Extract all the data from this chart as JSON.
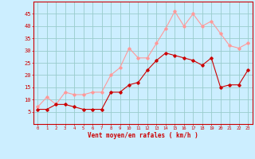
{
  "x": [
    0,
    1,
    2,
    3,
    4,
    5,
    6,
    7,
    8,
    9,
    10,
    11,
    12,
    13,
    14,
    15,
    16,
    17,
    18,
    19,
    20,
    21,
    22,
    23
  ],
  "wind_avg": [
    6,
    6,
    8,
    8,
    7,
    6,
    6,
    6,
    13,
    13,
    16,
    17,
    22,
    26,
    29,
    28,
    27,
    26,
    24,
    27,
    15,
    16,
    16,
    22
  ],
  "wind_gust": [
    7,
    11,
    8,
    13,
    12,
    12,
    13,
    13,
    20,
    23,
    31,
    27,
    27,
    33,
    39,
    46,
    40,
    45,
    40,
    42,
    37,
    32,
    31,
    33
  ],
  "avg_color": "#cc0000",
  "gust_color": "#ff9999",
  "bg_color": "#cceeff",
  "grid_color": "#99cccc",
  "axis_color": "#cc0000",
  "xlabel": "Vent moyen/en rafales ( km/h )",
  "ylim": [
    0,
    50
  ],
  "yticks": [
    5,
    10,
    15,
    20,
    25,
    30,
    35,
    40,
    45
  ],
  "xlim": [
    -0.5,
    23.5
  ]
}
